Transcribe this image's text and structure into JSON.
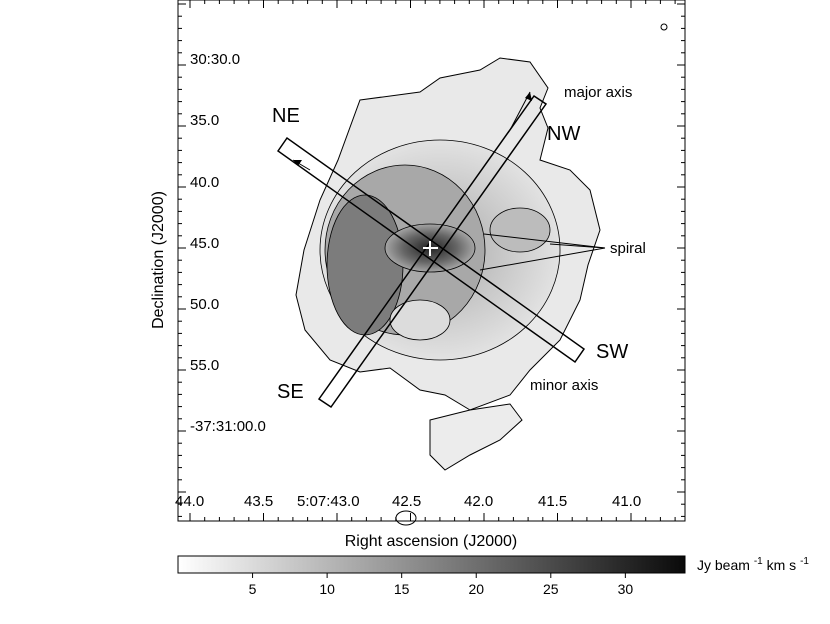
{
  "axes": {
    "xlabel": "Right ascension (J2000)",
    "ylabel": "Declination (J2000)",
    "x_ticks": [
      "44.0",
      "43.5",
      "5:07:43.0",
      "42.5",
      "42.0",
      "41.5",
      "41.0"
    ],
    "y_ticks": [
      "30:30.0",
      "35.0",
      "40.0",
      "45.0",
      "50.0",
      "55.0",
      "-37:31:00.0"
    ]
  },
  "labels": {
    "ne": "NE",
    "nw": "NW",
    "se": "SE",
    "sw": "SW",
    "major_axis": "major axis",
    "minor_axis": "minor axis",
    "spiral": "spiral"
  },
  "colorbar": {
    "unit_prefix": "Jy beam",
    "unit_exp": "-1",
    "unit_mid": " km s",
    "unit_exp2": "-1",
    "ticks": [
      "5",
      "10",
      "15",
      "20",
      "25",
      "30"
    ],
    "range": [
      0,
      34
    ]
  },
  "colors": {
    "background": "#ffffff",
    "ink": "#000000",
    "peak": "#111111"
  }
}
